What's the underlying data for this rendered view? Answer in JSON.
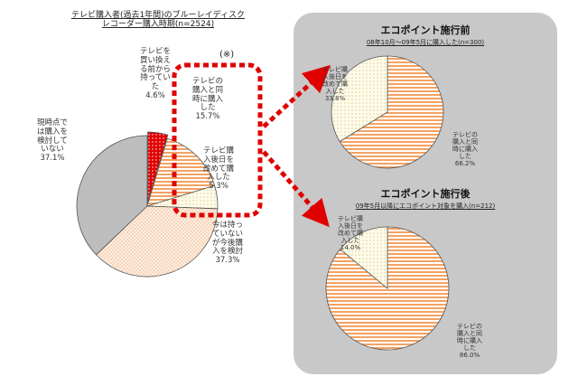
{
  "left_title": [
    "テレビ購入者(過去1年間)のブルーレイディスク",
    "レコーダー購入時期(n=2524)"
  ],
  "callout_mark": "(※)",
  "right_top": {
    "title": "エコポイント施行前",
    "caption": "08年10月～09年5月に購入した(n=300)"
  },
  "right_bottom": {
    "title": "エコポイント施行後",
    "caption": "09年5月以降にエコポイント対象を購入(n=212)"
  },
  "colors": {
    "panel": "#c8c8c8",
    "arrow": "#e00000",
    "dotted_red": "#e33b2e",
    "orange_stripe": "#f4a262",
    "pale_yellow": "#fdf6d8",
    "dots_pink": "#f5c8ab",
    "gray": "#bdbdbd",
    "outline": "#555555"
  },
  "chart_data": [
    {
      "type": "pie",
      "title": "テレビ購入者(過去1年間)のブルーレイディスクレコーダー購入時期(n=2524)",
      "slices": [
        {
          "label": "テレビを買い換える前から持っていた",
          "value": 4.6,
          "value_label": "4.6%",
          "fill": "red-dots"
        },
        {
          "label": "テレビの購入と同時に購入した",
          "value": 15.7,
          "value_label": "15.7%",
          "fill": "orange-stripes"
        },
        {
          "label": "テレビ購入後日を改めて購入した",
          "value": 5.3,
          "value_label": "5.3%",
          "fill": "pale-dots"
        },
        {
          "label": "今は持っていないが今後購入を検討",
          "value": 37.3,
          "value_label": "37.3%",
          "fill": "pink-dots"
        },
        {
          "label": "現時点では購入を検討していない",
          "value": 37.1,
          "value_label": "37.1%",
          "fill": "gray"
        }
      ]
    },
    {
      "type": "pie",
      "title": "エコポイント施行前",
      "subtitle": "08年10月～09年5月に購入した(n=300)",
      "slices": [
        {
          "label": "テレビの購入と同時に購入した",
          "value": 66.2,
          "value_label": "66.2%",
          "fill": "orange-stripes"
        },
        {
          "label": "テレビ購入後日を改めて購入した",
          "value": 33.8,
          "value_label": "33.8%",
          "fill": "pale-dots"
        }
      ]
    },
    {
      "type": "pie",
      "title": "エコポイント施行後",
      "subtitle": "09年5月以降にエコポイント対象を購入(n=212)",
      "slices": [
        {
          "label": "テレビの購入と同時に購入した",
          "value": 86.0,
          "value_label": "86.0%",
          "fill": "orange-stripes"
        },
        {
          "label": "テレビ購入後日を改めて購入した",
          "value": 14.0,
          "value_label": "14.0%",
          "fill": "pale-dots"
        }
      ]
    }
  ]
}
